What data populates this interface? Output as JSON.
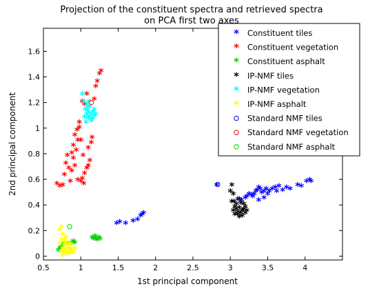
{
  "chart_data": {
    "type": "scatter",
    "title_line1": "Projection of the constituent spectra and retrieved spectra",
    "title_line2": "on PCA first two axes",
    "xlabel": "1st principal component",
    "ylabel": "2nd principal component",
    "xlim": [
      0.5,
      4.5
    ],
    "ylim": [
      -0.03,
      1.78
    ],
    "x_ticks": [
      0.5,
      1,
      1.5,
      2,
      2.5,
      3,
      3.5,
      4
    ],
    "x_tick_labels": [
      "0.5",
      "1",
      "1.5",
      "2",
      "2.5",
      "3",
      "3.5",
      "4"
    ],
    "y_ticks": [
      0,
      0.2,
      0.4,
      0.6,
      0.8,
      1,
      1.2,
      1.4,
      1.6
    ],
    "y_tick_labels": [
      "0",
      "0.2",
      "0.4",
      "0.6",
      "0.8",
      "1",
      "1.2",
      "1.4",
      "1.6"
    ],
    "grid": false,
    "legend_position": "top-right",
    "series": [
      {
        "name": "Constituent tiles",
        "marker": "*",
        "color": "#0000ff",
        "points": [
          [
            1.48,
            0.25
          ],
          [
            1.52,
            0.26
          ],
          [
            1.6,
            0.25
          ],
          [
            1.7,
            0.27
          ],
          [
            1.76,
            0.28
          ],
          [
            1.8,
            0.31
          ],
          [
            1.82,
            0.32
          ],
          [
            1.84,
            0.33
          ],
          [
            2.82,
            0.55
          ],
          [
            3.1,
            0.44
          ],
          [
            3.15,
            0.43
          ],
          [
            3.2,
            0.45
          ],
          [
            3.22,
            0.46
          ],
          [
            3.25,
            0.48
          ],
          [
            3.28,
            0.47
          ],
          [
            3.3,
            0.46
          ],
          [
            3.32,
            0.48
          ],
          [
            3.34,
            0.5
          ],
          [
            3.36,
            0.51
          ],
          [
            3.38,
            0.53
          ],
          [
            3.4,
            0.52
          ],
          [
            3.42,
            0.49
          ],
          [
            3.45,
            0.5
          ],
          [
            3.48,
            0.52
          ],
          [
            3.52,
            0.5
          ],
          [
            3.56,
            0.52
          ],
          [
            3.6,
            0.53
          ],
          [
            3.65,
            0.54
          ],
          [
            3.7,
            0.51
          ],
          [
            3.75,
            0.53
          ],
          [
            3.8,
            0.52
          ],
          [
            3.9,
            0.55
          ],
          [
            3.95,
            0.54
          ],
          [
            4.02,
            0.58
          ],
          [
            4.06,
            0.59
          ],
          [
            4.08,
            0.58
          ],
          [
            3.45,
            0.45
          ],
          [
            3.38,
            0.43
          ],
          [
            3.5,
            0.48
          ],
          [
            3.62,
            0.5
          ]
        ]
      },
      {
        "name": "Constituent vegetation",
        "marker": "*",
        "color": "#ff0000",
        "points": [
          [
            0.68,
            0.56
          ],
          [
            0.72,
            0.54
          ],
          [
            0.76,
            0.55
          ],
          [
            0.78,
            0.63
          ],
          [
            0.8,
            0.72
          ],
          [
            0.82,
            0.78
          ],
          [
            0.84,
            0.68
          ],
          [
            0.86,
            0.58
          ],
          [
            0.88,
            0.66
          ],
          [
            0.88,
            0.8
          ],
          [
            0.9,
            0.86
          ],
          [
            0.9,
            0.76
          ],
          [
            0.92,
            0.94
          ],
          [
            0.94,
            0.82
          ],
          [
            0.95,
            0.98
          ],
          [
            0.96,
            0.9
          ],
          [
            0.98,
            1.0
          ],
          [
            0.96,
            0.59
          ],
          [
            1.0,
            0.58
          ],
          [
            1.02,
            0.6
          ],
          [
            1.04,
            0.56
          ],
          [
            1.05,
            0.64
          ],
          [
            1.08,
            0.68
          ],
          [
            1.1,
            0.7
          ],
          [
            1.1,
            0.84
          ],
          [
            1.12,
            0.74
          ],
          [
            1.14,
            0.88
          ],
          [
            1.15,
            0.92
          ],
          [
            1.18,
            1.22
          ],
          [
            1.2,
            1.32
          ],
          [
            1.22,
            1.36
          ],
          [
            1.25,
            1.42
          ],
          [
            1.27,
            1.44
          ],
          [
            1.02,
            1.2
          ],
          [
            1.05,
            1.18
          ],
          [
            1.08,
            1.26
          ],
          [
            0.98,
            1.04
          ],
          [
            1.0,
            0.9
          ],
          [
            1.03,
            0.78
          ],
          [
            0.92,
            0.7
          ]
        ]
      },
      {
        "name": "Constituent asphalt",
        "marker": "*",
        "color": "#00cc00",
        "points": [
          [
            0.72,
            0.06
          ],
          [
            0.75,
            0.08
          ],
          [
            0.78,
            0.09
          ],
          [
            0.8,
            0.1
          ],
          [
            0.85,
            0.09
          ],
          [
            0.88,
            0.1
          ],
          [
            0.9,
            0.11
          ],
          [
            0.92,
            0.1
          ],
          [
            1.15,
            0.14
          ],
          [
            1.17,
            0.13
          ],
          [
            1.2,
            0.13
          ],
          [
            1.22,
            0.12
          ],
          [
            1.24,
            0.14
          ],
          [
            1.26,
            0.13
          ],
          [
            1.19,
            0.15
          ],
          [
            0.7,
            0.04
          ]
        ]
      },
      {
        "name": "IP-NMF tiles",
        "marker": "*",
        "color": "#000000",
        "points": [
          [
            3.0,
            0.5
          ],
          [
            3.02,
            0.55
          ],
          [
            3.04,
            0.48
          ],
          [
            3.05,
            0.42
          ],
          [
            3.06,
            0.38
          ],
          [
            3.08,
            0.36
          ],
          [
            3.08,
            0.4
          ],
          [
            3.1,
            0.34
          ],
          [
            3.1,
            0.32
          ],
          [
            3.12,
            0.3
          ],
          [
            3.12,
            0.37
          ],
          [
            3.14,
            0.33
          ],
          [
            3.14,
            0.41
          ],
          [
            3.16,
            0.35
          ],
          [
            3.16,
            0.31
          ],
          [
            3.18,
            0.36
          ],
          [
            3.18,
            0.4
          ],
          [
            3.2,
            0.33
          ],
          [
            3.2,
            0.38
          ],
          [
            3.22,
            0.35
          ],
          [
            3.02,
            0.42
          ],
          [
            3.04,
            0.35
          ],
          [
            3.06,
            0.32
          ],
          [
            3.12,
            0.44
          ]
        ]
      },
      {
        "name": "IP-NMF vegetation",
        "marker": "*",
        "color": "#00ffff",
        "points": [
          [
            1.02,
            1.26
          ],
          [
            1.04,
            1.2
          ],
          [
            1.06,
            1.14
          ],
          [
            1.08,
            1.1
          ],
          [
            1.08,
            1.18
          ],
          [
            1.1,
            1.07
          ],
          [
            1.1,
            1.12
          ],
          [
            1.12,
            1.16
          ],
          [
            1.12,
            1.08
          ],
          [
            1.14,
            1.1
          ],
          [
            1.14,
            1.05
          ],
          [
            1.16,
            1.12
          ],
          [
            1.16,
            1.07
          ],
          [
            1.18,
            1.14
          ],
          [
            1.18,
            1.09
          ],
          [
            1.2,
            1.1
          ],
          [
            1.05,
            1.08
          ],
          [
            1.07,
            1.04
          ],
          [
            1.09,
            1.15
          ],
          [
            1.11,
            1.2
          ]
        ]
      },
      {
        "name": "IP-NMF asphalt",
        "marker": "*",
        "color": "#ffff00",
        "points": [
          [
            0.72,
            0.2
          ],
          [
            0.74,
            0.22
          ],
          [
            0.74,
            0.12
          ],
          [
            0.76,
            0.05
          ],
          [
            0.76,
            0.16
          ],
          [
            0.78,
            0.08
          ],
          [
            0.78,
            0.02
          ],
          [
            0.8,
            0.04
          ],
          [
            0.8,
            0.1
          ],
          [
            0.82,
            0.01
          ],
          [
            0.82,
            0.06
          ],
          [
            0.84,
            0.03
          ],
          [
            0.84,
            0.08
          ],
          [
            0.86,
            0.02
          ],
          [
            0.86,
            0.05
          ],
          [
            0.88,
            0.04
          ],
          [
            0.9,
            0.02
          ],
          [
            0.76,
            0.0
          ],
          [
            0.8,
            0.14
          ],
          [
            0.72,
            0.09
          ],
          [
            0.74,
            0.03
          ],
          [
            0.92,
            0.05
          ],
          [
            0.78,
            0.12
          ],
          [
            0.86,
            0.09
          ]
        ]
      },
      {
        "name": "Standard NMF tiles",
        "marker": "o",
        "color": "#0000ff",
        "points": [
          [
            2.83,
            0.56
          ]
        ]
      },
      {
        "name": "Standard NMF vegetation",
        "marker": "o",
        "color": "#ff0000",
        "points": [
          [
            1.14,
            1.2
          ]
        ]
      },
      {
        "name": "Standard NMF asphalt",
        "marker": "o",
        "color": "#00cc00",
        "points": [
          [
            0.85,
            0.23
          ]
        ]
      }
    ]
  }
}
